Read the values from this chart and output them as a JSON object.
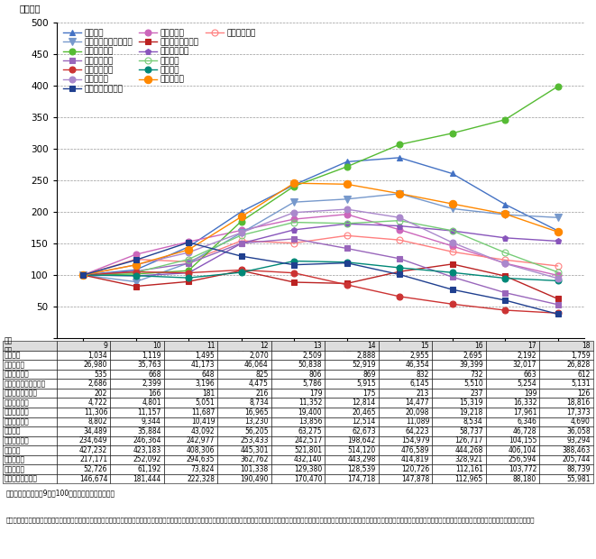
{
  "years": [
    9,
    10,
    11,
    12,
    13,
    14,
    15,
    16,
    17,
    18
  ],
  "raw": {
    "路上強盗": [
      1034,
      1119,
      1495,
      2070,
      2509,
      2888,
      2955,
      2695,
      2192,
      1759
    ],
    "ひったくり": [
      26980,
      35763,
      41173,
      46064,
      50838,
      52919,
      46354,
      39399,
      32017,
      26828
    ],
    "強盗（街頭）": [
      535,
      668,
      648,
      825,
      806,
      869,
      832,
      732,
      663,
      612
    ],
    "強制わいせつ（街頭）": [
      2686,
      2399,
      3196,
      4475,
      5786,
      5915,
      6145,
      5510,
      5254,
      5131
    ],
    "略取誘拐（街頭）": [
      202,
      166,
      181,
      216,
      179,
      175,
      213,
      237,
      199,
      126
    ],
    "暴行（街頭）": [
      4722,
      4801,
      5051,
      8734,
      11352,
      12814,
      14477,
      15319,
      16332,
      18816
    ],
    "傷害（街頭）": [
      11306,
      11157,
      11687,
      16965,
      19400,
      20465,
      20098,
      19218,
      17961,
      17373
    ],
    "恐喝（街頭）": [
      8802,
      9344,
      10419,
      13230,
      13856,
      12514,
      11089,
      8534,
      6346,
      4690
    ],
    "自動車盗": [
      34489,
      35884,
      43092,
      56205,
      63275,
      62673,
      64223,
      58737,
      46728,
      36058
    ],
    "オートバイ盗": [
      234649,
      246364,
      242977,
      253433,
      242517,
      198642,
      154979,
      126717,
      104155,
      93294
    ],
    "自転車盗": [
      427232,
      423183,
      408306,
      445301,
      521801,
      514120,
      476589,
      444268,
      406104,
      388463
    ],
    "車上ねらい": [
      217171,
      252092,
      294635,
      362762,
      432140,
      443298,
      414819,
      328921,
      256594,
      205744
    ],
    "部品ねらい": [
      52726,
      61192,
      73824,
      101338,
      129380,
      128539,
      120726,
      112161,
      103772,
      88739
    ],
    "自動販売機ねらい": [
      146674,
      181444,
      222328,
      190490,
      170470,
      174718,
      147878,
      112965,
      88180,
      55981
    ]
  },
  "series_styles": {
    "路上強盗": {
      "color": "#4472C4",
      "marker": "^",
      "markersize": 5,
      "fillstyle": "full"
    },
    "ひったくり": {
      "color": "#CC66BB",
      "marker": "o",
      "markersize": 5,
      "fillstyle": "full"
    },
    "強盗（街頭）": {
      "color": "#FF8080",
      "marker": "o",
      "markersize": 5,
      "fillstyle": "none"
    },
    "強制わいせつ（街頭）": {
      "color": "#7799CC",
      "marker": "v",
      "markersize": 6,
      "fillstyle": "full"
    },
    "略取誘拐（街頭）": {
      "color": "#BB2222",
      "marker": "s",
      "markersize": 4,
      "fillstyle": "full"
    },
    "暴行（街頭）": {
      "color": "#55BB33",
      "marker": "o",
      "markersize": 5,
      "fillstyle": "full"
    },
    "傷害（街頭）": {
      "color": "#8855BB",
      "marker": "p",
      "markersize": 5,
      "fillstyle": "full"
    },
    "恐喝（街頭）": {
      "color": "#9966BB",
      "marker": "s",
      "markersize": 4,
      "fillstyle": "full"
    },
    "自動車盗": {
      "color": "#77CC77",
      "marker": "o",
      "markersize": 5,
      "fillstyle": "none"
    },
    "オートバイ盗": {
      "color": "#CC3333",
      "marker": "o",
      "markersize": 5,
      "fillstyle": "full"
    },
    "自転車盗": {
      "color": "#008877",
      "marker": "o",
      "markersize": 5,
      "fillstyle": "full"
    },
    "車上ねらい": {
      "color": "#AA88CC",
      "marker": "o",
      "markersize": 5,
      "fillstyle": "full"
    },
    "部品ねらい": {
      "color": "#FF8800",
      "marker": "o",
      "markersize": 6,
      "fillstyle": "full"
    },
    "自動販売機ねらい": {
      "color": "#1F3F8F",
      "marker": "s",
      "markersize": 5,
      "fillstyle": "full"
    }
  },
  "legend_rows": [
    [
      "路上強盗",
      "ひったくり",
      "強盗（街頭）"
    ],
    [
      "強制わいせつ（街頭）",
      "略取誘拐（街頭）"
    ],
    [
      "暴行（街頭）",
      "傷害（街頭）"
    ],
    [
      "恐喝（街頭）",
      "自動車盗"
    ],
    [
      "オートバイ盗",
      "自転車盗"
    ],
    [
      "車上ねらい",
      "部品ねらい"
    ],
    [
      "自動販売機ねらい"
    ]
  ],
  "ylabel": "（指数）",
  "ylim": [
    0,
    500
  ],
  "yticks": [
    0,
    50,
    100,
    150,
    200,
    250,
    300,
    350,
    400,
    450,
    500
  ],
  "note1": "注１：指数は、平成9年を100とした場合の値である。",
  "note2": "　２：街頭とは、道路上、駐車（輪）場、都市公園、空き地、公共交通機関等（地下鉄内、新幹線内、その他の列車内、駅、その他の鉄道施設、航空機内、空港、船舶内、海港及びバス内）、その他の交通機関（タクシー内及びその他の自動車内）及びその他の街頭（地下街地下通路及び高速道路）とした。"
}
